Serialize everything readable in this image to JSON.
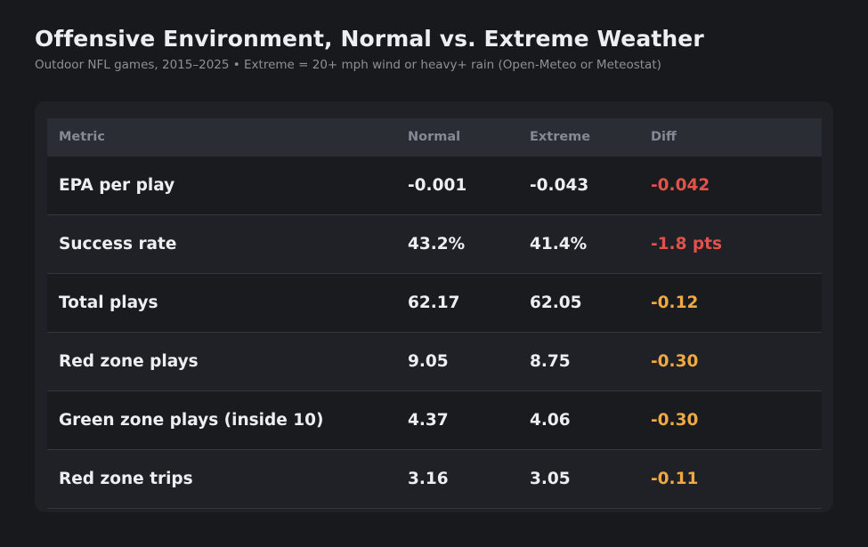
{
  "title": "Offensive Environment, Normal vs. Extreme Weather",
  "subtitle": "Outdoor NFL games, 2015–2025  •  Extreme = 20+ mph wind or heavy+ rain (Open-Meteo or Meteostat)",
  "colors": {
    "background": "#18191c",
    "card": "#1f2126",
    "header": "#2a2d33",
    "text": "#eceef1",
    "muted": "#8d9097",
    "diff_red": "#e0524a",
    "diff_orange": "#f0a842"
  },
  "chart_data": {
    "type": "table",
    "columns": [
      "Metric",
      "Normal",
      "Extreme",
      "Diff"
    ],
    "rows": [
      {
        "metric": "EPA per play",
        "normal": "-0.001",
        "extreme": "-0.043",
        "diff": "-0.042",
        "diff_color": "#e0524a"
      },
      {
        "metric": "Success rate",
        "normal": "43.2%",
        "extreme": "41.4%",
        "diff": "-1.8 pts",
        "diff_color": "#e0524a"
      },
      {
        "metric": "Total plays",
        "normal": "62.17",
        "extreme": "62.05",
        "diff": "-0.12",
        "diff_color": "#f0a842"
      },
      {
        "metric": "Red zone plays",
        "normal": "9.05",
        "extreme": "8.75",
        "diff": "-0.30",
        "diff_color": "#f0a842"
      },
      {
        "metric": "Green zone plays (inside 10)",
        "normal": "4.37",
        "extreme": "4.06",
        "diff": "-0.30",
        "diff_color": "#f0a842"
      },
      {
        "metric": "Red zone trips",
        "normal": "3.16",
        "extreme": "3.05",
        "diff": "-0.11",
        "diff_color": "#f0a842"
      }
    ]
  }
}
